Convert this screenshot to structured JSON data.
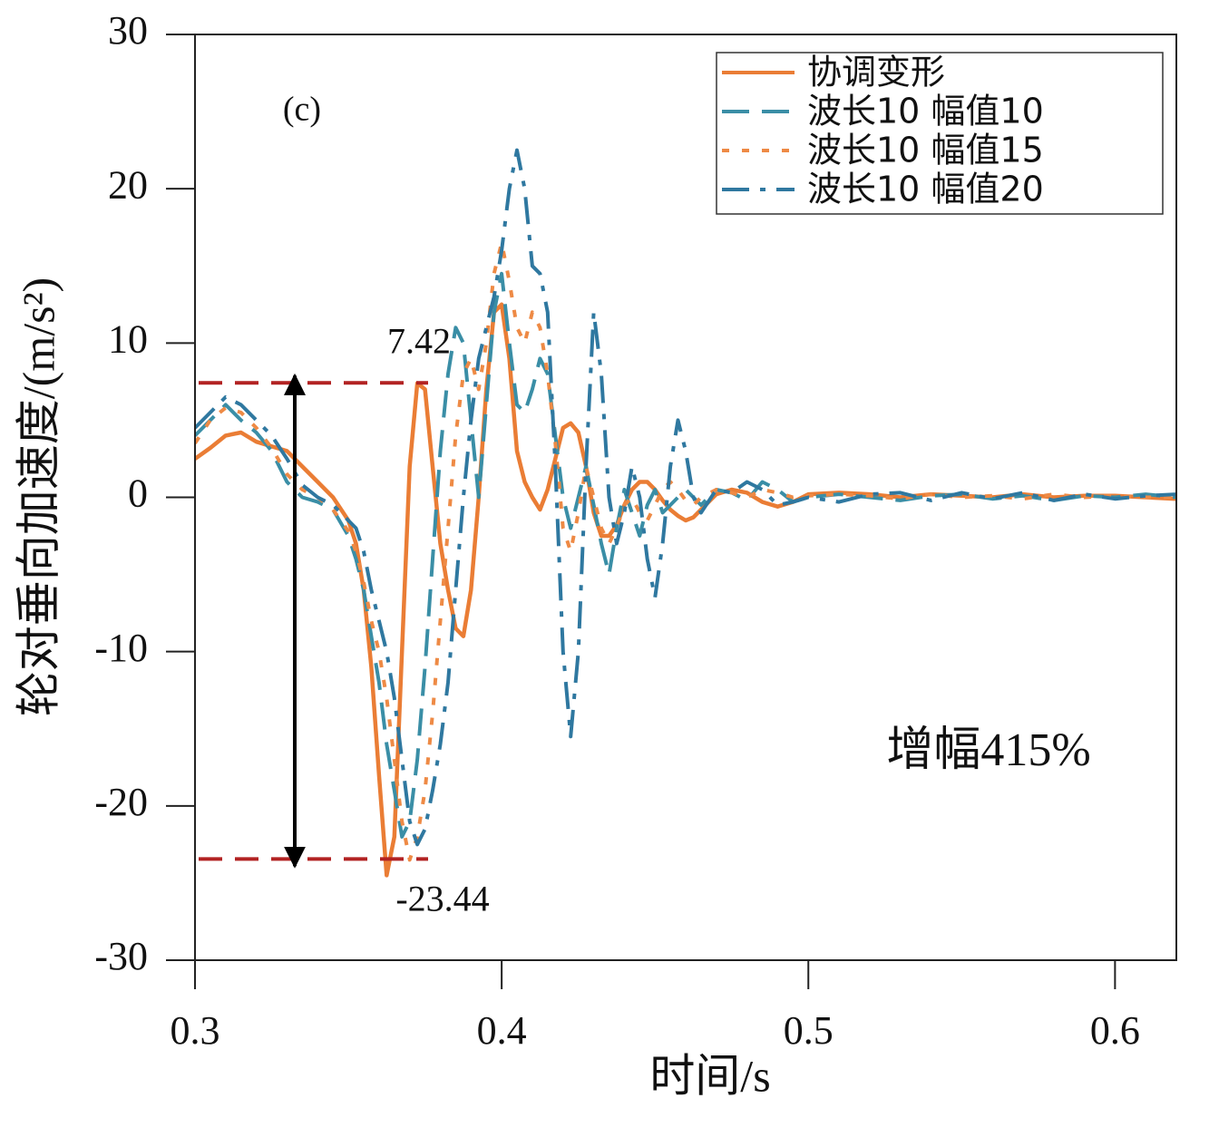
{
  "chart_data": {
    "type": "line",
    "xlabel": "时间/s",
    "ylabel": "轮对垂向加速度/(m/s²)",
    "xlim": [
      0.3,
      0.62
    ],
    "ylim": [
      -30,
      30
    ],
    "xticks": [
      0.3,
      0.4,
      0.5,
      0.6
    ],
    "yticks": [
      -30,
      -20,
      -10,
      0,
      10,
      20,
      30
    ],
    "legend": "upper right",
    "annotations": [
      "(c)",
      "增幅415%"
    ],
    "hlines": [
      7.42,
      -23.44
    ],
    "hline_color": "#b22222",
    "x": [
      0.3,
      0.305,
      0.31,
      0.315,
      0.32,
      0.325,
      0.33,
      0.335,
      0.34,
      0.345,
      0.35,
      0.3525,
      0.355,
      0.3575,
      0.36,
      0.3625,
      0.365,
      0.3675,
      0.37,
      0.3725,
      0.375,
      0.3775,
      0.38,
      0.3825,
      0.385,
      0.3875,
      0.39,
      0.3925,
      0.395,
      0.3975,
      0.4,
      0.4025,
      0.405,
      0.4075,
      0.41,
      0.4125,
      0.415,
      0.4175,
      0.42,
      0.4225,
      0.425,
      0.4275,
      0.43,
      0.4325,
      0.435,
      0.4375,
      0.44,
      0.4425,
      0.445,
      0.4475,
      0.45,
      0.4525,
      0.455,
      0.4575,
      0.46,
      0.4625,
      0.465,
      0.47,
      0.475,
      0.48,
      0.485,
      0.49,
      0.495,
      0.5,
      0.51,
      0.52,
      0.53,
      0.54,
      0.55,
      0.56,
      0.57,
      0.58,
      0.59,
      0.6,
      0.61,
      0.62
    ],
    "series": [
      {
        "name": "协调变形",
        "color": "#ea7d35",
        "dash": "solid",
        "values": [
          2.5,
          3.2,
          4.0,
          4.2,
          3.6,
          3.3,
          3.0,
          2.0,
          1.0,
          0,
          -1.5,
          -3,
          -6,
          -11,
          -18,
          -24.5,
          -22,
          -10,
          2,
          7.4,
          7,
          2,
          -3,
          -6,
          -8.5,
          -9,
          -6,
          0,
          7,
          12,
          12.5,
          9,
          3,
          1,
          0,
          -0.8,
          0.5,
          2.5,
          4.5,
          4.8,
          4.2,
          2,
          -1,
          -2.5,
          -2.5,
          -1.8,
          -0.5,
          0.5,
          1.0,
          1.0,
          0.5,
          -0.2,
          -0.8,
          -1.2,
          -1.5,
          -1.3,
          -0.8,
          0.2,
          0.5,
          0.3,
          -0.3,
          -0.6,
          -0.3,
          0.2,
          0.3,
          0.2,
          0,
          0.2,
          0.1,
          0,
          0.2,
          0,
          0.1,
          0.1,
          0,
          -0.1
        ]
      },
      {
        "name": "波长10 幅值10",
        "color": "#3a8ea6",
        "dash": "dashed",
        "values": [
          4,
          5,
          6,
          5,
          4.2,
          3,
          1,
          0,
          -0.3,
          -0.8,
          -2.5,
          -4,
          -6,
          -9,
          -12,
          -16,
          -19,
          -22,
          -21,
          -17,
          -11,
          -4,
          3,
          8,
          11,
          10,
          5,
          0,
          6,
          12,
          14.5,
          10,
          6,
          5.5,
          7,
          9,
          8,
          4,
          0,
          -2,
          0,
          2,
          -0.5,
          -3,
          -5,
          -2,
          0.5,
          -1,
          -2.5,
          -0.5,
          0.5,
          -1,
          -0.5,
          0,
          0.5,
          0,
          -0.5,
          0.5,
          0.3,
          -0.2,
          1,
          0.5,
          -0.3,
          0,
          0.2,
          0,
          -0.2,
          0.1,
          0.2,
          -0.1,
          0.1,
          -0.2,
          0.1,
          0,
          0.2,
          0
        ]
      },
      {
        "name": "波长10 幅值15",
        "color": "#ee8a45",
        "dash": "dotted",
        "values": [
          3.5,
          5,
          5.8,
          5.5,
          4.5,
          3.2,
          1.5,
          0.5,
          0,
          -0.8,
          -2.2,
          -3.5,
          -5.5,
          -8,
          -10,
          -13,
          -17,
          -21,
          -23.5,
          -22,
          -19,
          -14,
          -8,
          -2,
          4,
          8,
          9,
          7,
          10,
          14.5,
          16.5,
          14,
          11,
          10,
          12,
          11,
          8,
          3.5,
          -2,
          -3.5,
          -1,
          2,
          0,
          -2,
          -3,
          -2,
          -0.5,
          0,
          -1,
          -1.5,
          -0.5,
          0.5,
          1,
          0.5,
          -0.2,
          -0.5,
          0,
          0.5,
          0.3,
          0,
          0.5,
          0.3,
          0,
          0.1,
          0.2,
          0.1,
          -0.1,
          0.2,
          0,
          0.1,
          -0.1,
          0.2,
          0,
          0.1,
          0,
          0
        ]
      },
      {
        "name": "波长10 幅值20",
        "color": "#2f78a0",
        "dash": "dashdot",
        "values": [
          4.5,
          5.5,
          6.5,
          6,
          5,
          4,
          2.5,
          0.8,
          0,
          -0.5,
          -1.5,
          -2,
          -3.5,
          -6,
          -8,
          -10,
          -13,
          -17,
          -21,
          -22.5,
          -21.5,
          -19,
          -16,
          -12,
          -6,
          0,
          5,
          9,
          11,
          13,
          16,
          20,
          22.5,
          20,
          15,
          14.5,
          12,
          2,
          -10,
          -15.5,
          -10,
          2,
          12,
          8,
          0,
          -3,
          -1,
          2,
          0,
          -4,
          -6.5,
          -3,
          2,
          5,
          3,
          0,
          -1,
          0.5,
          0.3,
          1,
          0.5,
          -0.5,
          -0.3,
          0,
          -0.3,
          0.2,
          0.3,
          -0.2,
          0.3,
          -0.1,
          0.3,
          -0.2,
          0.2,
          -0.1,
          0.1,
          0.2
        ]
      }
    ]
  }
}
